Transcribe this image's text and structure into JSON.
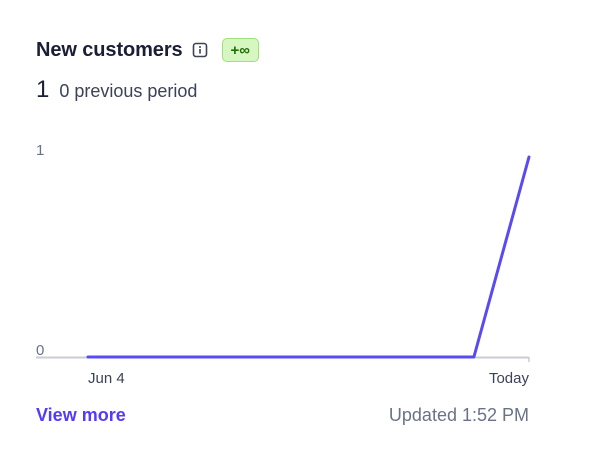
{
  "card": {
    "title": "New customers",
    "info_icon": "info-icon",
    "badge": "+∞",
    "current_value": "1",
    "previous_period": "0 previous period",
    "view_more": "View more",
    "updated": "Updated 1:52 PM"
  },
  "colors": {
    "line": "#5a4bf0",
    "baseline": "#c9ccd4",
    "badge_bg": "#d7f7c2",
    "badge_text": "#217005",
    "link": "#533afd"
  },
  "chart_data": {
    "type": "line",
    "x_ticks": [
      "Jun 4",
      "Today"
    ],
    "y_ticks": [
      "1",
      "0"
    ],
    "ylim": [
      0,
      1
    ],
    "grid": false,
    "series": [
      {
        "values": [
          0,
          0,
          0,
          0,
          0,
          0,
          0,
          0,
          1
        ]
      }
    ]
  }
}
